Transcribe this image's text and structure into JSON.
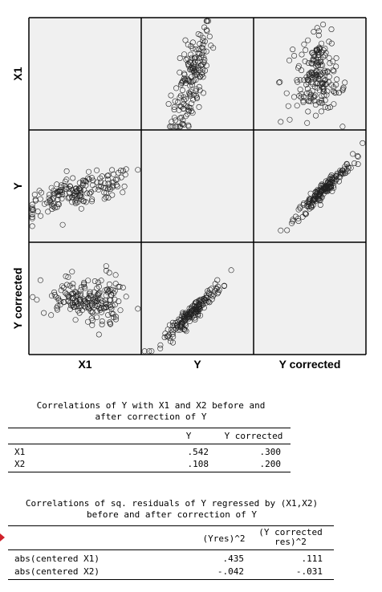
{
  "chart_data": {
    "type": "scatter",
    "variables": [
      "X1",
      "Y",
      "Y corrected"
    ],
    "panels": [
      {
        "row": "X1",
        "col": "Y",
        "x_range": [
          0,
          1
        ],
        "y_range": [
          0,
          1
        ],
        "clusters": [
          {
            "cx": 0.45,
            "cy": 0.45,
            "sx": 0.09,
            "sy": 0.26,
            "rho": 0.7,
            "n": 170
          }
        ]
      },
      {
        "row": "X1",
        "col": "Y corrected",
        "x_range": [
          0,
          1
        ],
        "y_range": [
          0,
          1
        ],
        "clusters": [
          {
            "cx": 0.57,
            "cy": 0.6,
            "sx": 0.06,
            "sy": 0.14,
            "rho": 0.2,
            "n": 75
          },
          {
            "cx": 0.6,
            "cy": 0.34,
            "sx": 0.12,
            "sy": 0.08,
            "rho": 0.1,
            "n": 65
          },
          {
            "cx": 0.5,
            "cy": 0.48,
            "sx": 0.13,
            "sy": 0.2,
            "rho": 0.1,
            "n": 50
          }
        ]
      },
      {
        "row": "Y",
        "col": "X1",
        "x_range": [
          0,
          1
        ],
        "y_range": [
          0,
          1
        ],
        "clusters": [
          {
            "cx": 0.45,
            "cy": 0.45,
            "sx": 0.26,
            "sy": 0.09,
            "rho": 0.7,
            "n": 170
          }
        ]
      },
      {
        "row": "Y",
        "col": "Y corrected",
        "x_range": [
          0,
          1
        ],
        "y_range": [
          0,
          1
        ],
        "clusters": [
          {
            "cx": 0.62,
            "cy": 0.46,
            "sx": 0.13,
            "sy": 0.13,
            "rho": 0.96,
            "n": 180
          }
        ]
      },
      {
        "row": "Y corrected",
        "col": "X1",
        "x_range": [
          0,
          1
        ],
        "y_range": [
          0,
          1
        ],
        "clusters": [
          {
            "cx": 0.4,
            "cy": 0.48,
            "sx": 0.14,
            "sy": 0.06,
            "rho": 0.2,
            "n": 75
          },
          {
            "cx": 0.66,
            "cy": 0.45,
            "sx": 0.08,
            "sy": 0.12,
            "rho": 0.1,
            "n": 65
          },
          {
            "cx": 0.52,
            "cy": 0.5,
            "sx": 0.2,
            "sy": 0.13,
            "rho": 0.1,
            "n": 50
          }
        ]
      },
      {
        "row": "Y corrected",
        "col": "Y",
        "x_range": [
          0,
          1
        ],
        "y_range": [
          0,
          1
        ],
        "clusters": [
          {
            "cx": 0.46,
            "cy": 0.38,
            "sx": 0.13,
            "sy": 0.13,
            "rho": 0.96,
            "n": 180
          }
        ]
      }
    ],
    "point_color": "#222222",
    "panel_background": "#f0f0f0"
  },
  "table1": {
    "title": "Correlations of Y with X1 and X2 before and\nafter correction of Y",
    "columns": [
      "Y",
      "Y corrected"
    ],
    "rows": [
      {
        "label": "X1",
        "values": [
          ".542",
          ".300"
        ]
      },
      {
        "label": "X2",
        "values": [
          ".108",
          ".200"
        ]
      }
    ]
  },
  "table2": {
    "title": "Correlations of sq. residuals of Y regressed by (X1,X2)\nbefore and after correction of Y",
    "columns": [
      "(Yres)^2",
      "(Y corrected\nres)^2"
    ],
    "rows": [
      {
        "label": "abs(centered X1)",
        "values": [
          ".435",
          ".111"
        ]
      },
      {
        "label": "abs(centered X2)",
        "values": [
          "-.042",
          "-.031"
        ]
      }
    ]
  },
  "colors": {
    "marker": "#d0212a"
  }
}
